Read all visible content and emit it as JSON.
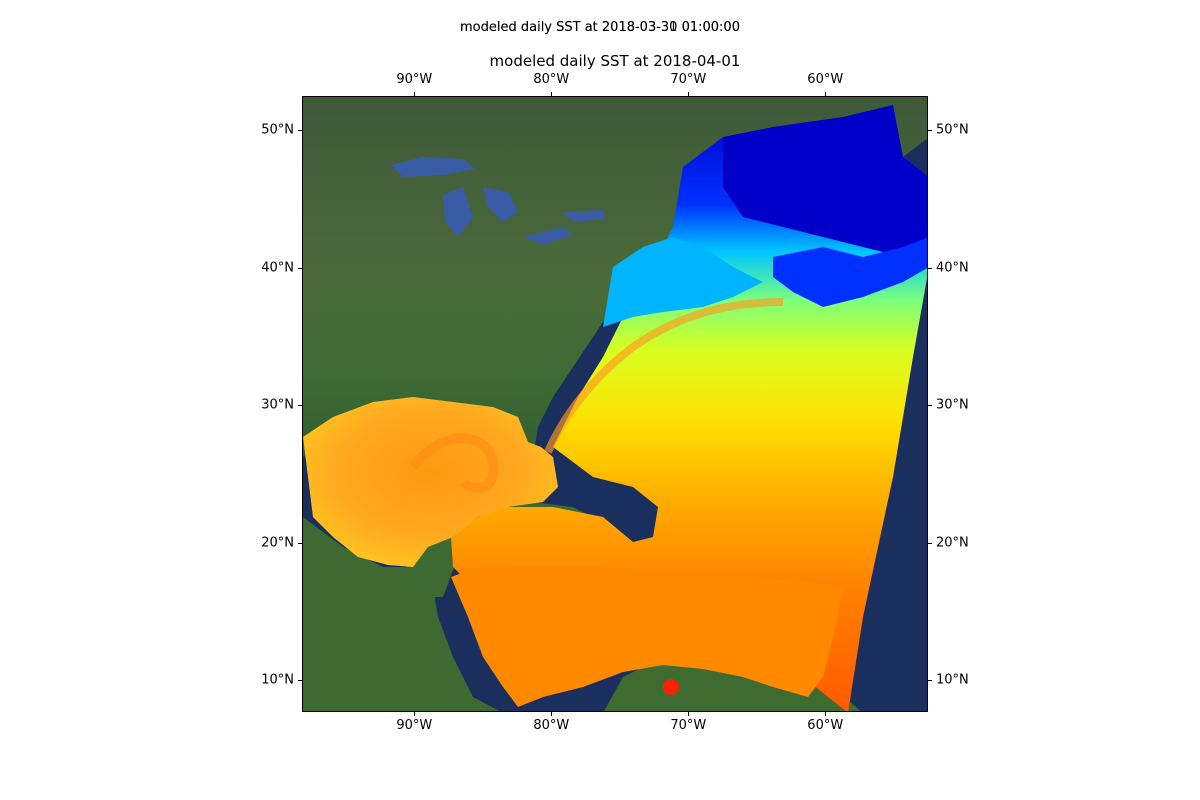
{
  "figure": {
    "suptitle_primary": "modeled daily SST at 2018-03-30 01:00:00",
    "suptitle_overlap": "modeled daily SST at 2018-03-31 01:00:00",
    "axes_title": "modeled daily SST at 2018-04-01"
  },
  "map": {
    "projection": "PlateCarree",
    "extent": {
      "lon": [
        -98.2,
        -52.5
      ],
      "lat": [
        7.7,
        52.5
      ]
    },
    "background": "satellite imagery",
    "colormap": "jet",
    "colors": {
      "ocean_deep": "#1a3166",
      "land_dark": "#3c5a36",
      "lakes": "#3a5ca7",
      "sst_cold": "#0000d0",
      "sst_cool": "#00c8ff",
      "sst_mid": "#b8ff30",
      "sst_warm": "#ffd000",
      "sst_hot": "#ff7800",
      "sst_max": "#ff2000"
    }
  },
  "axes": {
    "x_ticks": [
      {
        "lon": -90,
        "label": "90°W"
      },
      {
        "lon": -80,
        "label": "80°W"
      },
      {
        "lon": -70,
        "label": "70°W"
      },
      {
        "lon": -60,
        "label": "60°W"
      }
    ],
    "y_ticks": [
      {
        "lat": 50,
        "label": "50°N"
      },
      {
        "lat": 40,
        "label": "40°N"
      },
      {
        "lat": 30,
        "label": "30°N"
      },
      {
        "lat": 20,
        "label": "20°N"
      },
      {
        "lat": 10,
        "label": "10°N"
      }
    ]
  }
}
